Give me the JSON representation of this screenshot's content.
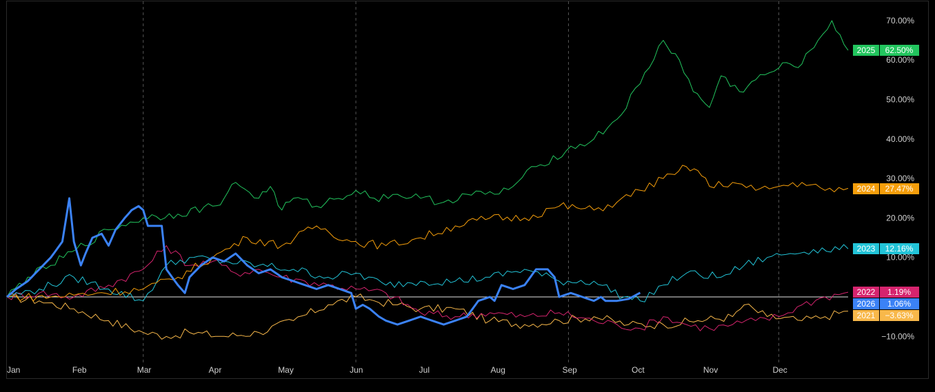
{
  "chart_data": {
    "type": "line",
    "title": "",
    "xlabel": "",
    "ylabel": "",
    "x_ticks": [
      "Jan",
      "Feb",
      "Mar",
      "Apr",
      "May",
      "Jun",
      "Jul",
      "Aug",
      "Sep",
      "Oct",
      "Nov",
      "Dec"
    ],
    "y_ticks": [
      "70.00%",
      "60.00%",
      "50.00%",
      "40.00%",
      "30.00%",
      "20.00%",
      "10.00%",
      "−10.00%"
    ],
    "ylim": [
      -13,
      73
    ],
    "x_unit": "day of year",
    "grid": "vertical dashed at quarter months",
    "legend": "right-side value tags",
    "series": [
      {
        "name": "2025",
        "color": "#22c55e",
        "end_label": "62.50%",
        "x": [
          1,
          10,
          20,
          31,
          45,
          60,
          75,
          90,
          95,
          100,
          110,
          115,
          120,
          125,
          135,
          152,
          160,
          170,
          180,
          190,
          200,
          212,
          220,
          230,
          243,
          255,
          265,
          275,
          285,
          292,
          298,
          305,
          310,
          318,
          325,
          335,
          340,
          345,
          352,
          358,
          365
        ],
        "values": [
          0,
          5,
          8,
          12,
          17,
          20,
          21,
          23,
          25,
          29,
          25,
          28,
          22,
          25,
          23,
          27,
          25,
          26,
          25,
          24,
          26,
          26,
          28,
          33,
          37,
          40,
          45,
          54,
          65,
          60,
          52,
          48,
          56,
          52,
          55,
          58,
          59,
          59,
          65,
          70,
          62.5
        ]
      },
      {
        "name": "2024",
        "color": "#f59e0b",
        "end_label": "27.47%",
        "x": [
          1,
          20,
          40,
          60,
          75,
          90,
          105,
          120,
          135,
          150,
          165,
          180,
          195,
          210,
          225,
          240,
          255,
          265,
          275,
          285,
          290,
          295,
          300,
          305,
          315,
          325,
          335,
          345,
          355,
          365
        ],
        "values": [
          0,
          0,
          1,
          2,
          5,
          10,
          15,
          13,
          18,
          14,
          13,
          15,
          18,
          20,
          20,
          23,
          22,
          24,
          27,
          30,
          31,
          33,
          32,
          28,
          29,
          27,
          28,
          29,
          27,
          27.5
        ]
      },
      {
        "name": "2023",
        "color": "#22c4d8",
        "end_label": "12.16%",
        "x": [
          1,
          15,
          30,
          45,
          60,
          70,
          80,
          95,
          110,
          125,
          140,
          152,
          165,
          180,
          195,
          210,
          225,
          240,
          255,
          268,
          275,
          285,
          295,
          310,
          320,
          330,
          340,
          350,
          365
        ],
        "values": [
          0,
          2,
          5,
          2,
          -1,
          8,
          10,
          9,
          8,
          7,
          5,
          6,
          3,
          4,
          4,
          5,
          7,
          4,
          4,
          0,
          -1,
          3,
          6,
          5,
          8,
          10,
          11,
          12,
          12.2
        ]
      },
      {
        "name": "2022",
        "color": "#d6246e",
        "end_label": "1.19%",
        "x": [
          1,
          15,
          30,
          45,
          60,
          70,
          80,
          90,
          100,
          110,
          120,
          130,
          140,
          152,
          165,
          180,
          195,
          210,
          225,
          240,
          255,
          265,
          275,
          285,
          295,
          305,
          315,
          325,
          335,
          345,
          355,
          365
        ],
        "values": [
          0,
          1,
          0,
          3,
          7,
          13,
          8,
          9,
          6,
          7,
          5,
          4,
          3,
          2,
          1,
          -4,
          -5,
          -4,
          -5,
          -4,
          -6,
          -7,
          -8,
          -5,
          -7,
          -8,
          -7,
          -6,
          -5,
          -2,
          0,
          1.2
        ]
      },
      {
        "name": "2021",
        "color": "#f8b84a",
        "end_label": "−3.63%",
        "x": [
          1,
          15,
          30,
          45,
          60,
          70,
          80,
          95,
          110,
          125,
          140,
          152,
          160,
          170,
          180,
          195,
          210,
          225,
          240,
          255,
          270,
          285,
          300,
          315,
          320,
          330,
          345,
          355,
          365
        ],
        "values": [
          0,
          -1,
          -3,
          -6,
          -9,
          -10,
          -9,
          -10,
          -9,
          -6,
          -2,
          0,
          -1,
          -2,
          -3,
          -3,
          -6,
          -7,
          -6,
          -5,
          -7,
          -7,
          -6,
          -5,
          -2,
          -5,
          -6,
          -5,
          -3.6
        ]
      },
      {
        "name": "2026",
        "color": "#3b82f6",
        "end_label": "1.06%",
        "x": [
          1,
          5,
          10,
          15,
          20,
          25,
          28,
          30,
          33,
          35,
          38,
          42,
          45,
          48,
          52,
          55,
          58,
          60,
          62,
          65,
          68,
          70,
          75,
          78,
          80,
          85,
          90,
          95,
          100,
          105,
          110,
          115,
          120,
          125,
          130,
          135,
          140,
          145,
          150,
          152,
          155,
          158,
          162,
          165,
          170,
          175,
          180,
          185,
          190,
          195,
          200,
          205,
          210,
          212,
          215,
          220,
          225,
          230,
          235,
          238,
          240,
          245,
          250,
          255,
          258,
          260,
          265,
          270,
          275
        ],
        "values": [
          0,
          2,
          4,
          7,
          10,
          14,
          25,
          14,
          8,
          11,
          15,
          16,
          13,
          17,
          20,
          22,
          23,
          22,
          18,
          18,
          18,
          7,
          3,
          1,
          5,
          8,
          10,
          9,
          11,
          8,
          6,
          7,
          5,
          4,
          3,
          2,
          3,
          2,
          1,
          -3,
          -2,
          -3,
          -5,
          -6,
          -7,
          -6,
          -5,
          -6,
          -7,
          -6,
          -5,
          -1,
          0,
          -1,
          3,
          2,
          3,
          7,
          7,
          5,
          0,
          1,
          0,
          -1,
          0,
          -1,
          -1,
          -0.5,
          1.06
        ]
      }
    ]
  }
}
